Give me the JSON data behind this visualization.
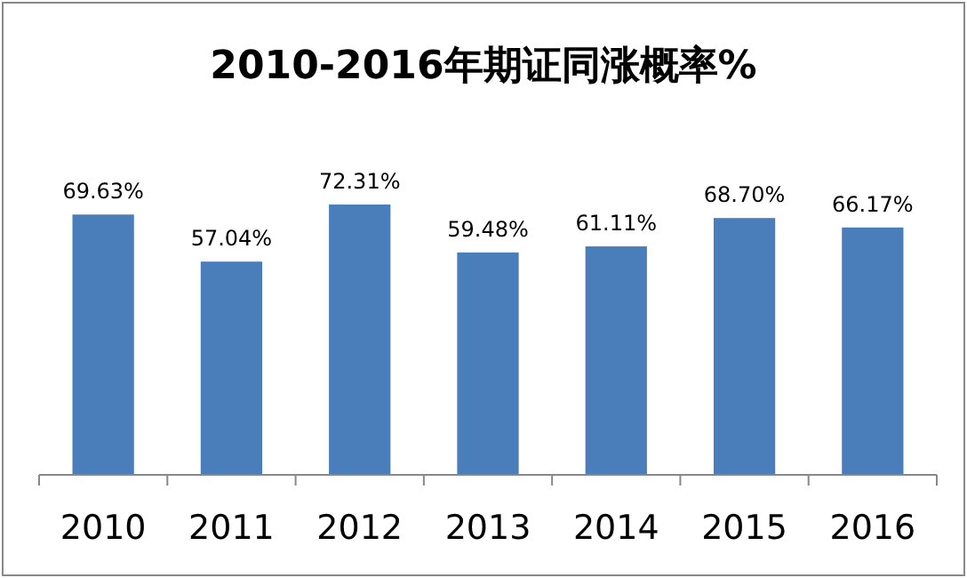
{
  "chart_data": {
    "type": "bar",
    "title": "2010-2016年期证同涨概率%",
    "categories": [
      "2010",
      "2011",
      "2012",
      "2013",
      "2014",
      "2015",
      "2016"
    ],
    "values": [
      69.63,
      57.04,
      72.31,
      59.48,
      61.11,
      68.7,
      66.17
    ],
    "value_labels": [
      "69.63%",
      "57.04%",
      "72.31%",
      "59.48%",
      "61.11%",
      "68.70%",
      "66.17%"
    ],
    "color": "#4a7ebb",
    "grid": false
  }
}
